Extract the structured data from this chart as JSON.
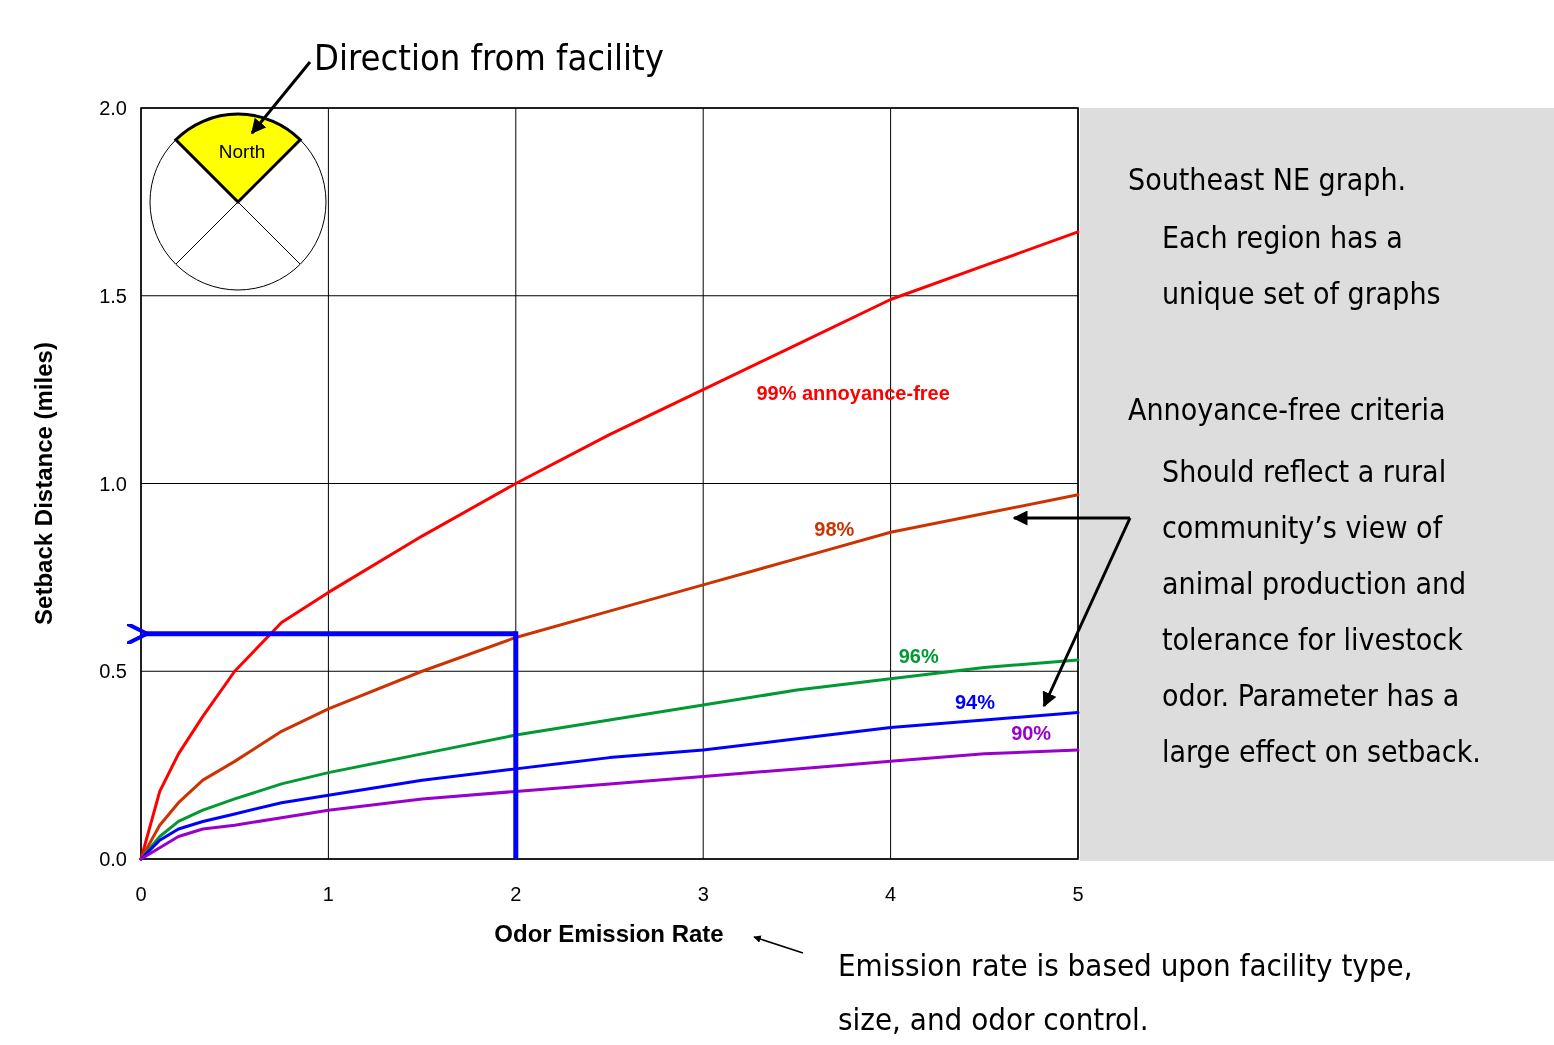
{
  "chart_data": {
    "type": "line",
    "xlabel": "Odor Emission Rate",
    "ylabel": "Setback Distance (miles)",
    "xlim": [
      0,
      5
    ],
    "xticks": [
      0,
      1,
      2,
      3,
      4,
      5
    ],
    "ylim": [
      0,
      2
    ],
    "yticks": [
      {
        "value": 0,
        "label": "0.0"
      },
      {
        "value": 0.5,
        "label": "0.5"
      },
      {
        "value": 1,
        "label": "1.0"
      },
      {
        "value": 1.5,
        "label": "1.5"
      },
      {
        "value": 2,
        "label": "2.0"
      }
    ],
    "grid": true,
    "marker": "none",
    "line_style": "solid",
    "x": [
      0,
      0.1,
      0.2,
      0.33,
      0.5,
      0.75,
      1,
      1.5,
      2,
      2.5,
      3,
      3.5,
      4,
      4.5,
      5
    ],
    "series": [
      {
        "name": "99% annoyance-free",
        "color": "#ff0000",
        "values": [
          0,
          0.18,
          0.28,
          0.38,
          0.5,
          0.63,
          0.71,
          0.86,
          1.0,
          1.13,
          1.25,
          1.37,
          1.49,
          1.58,
          1.67
        ]
      },
      {
        "name": "98%",
        "color": "#cc3300",
        "values": [
          0,
          0.09,
          0.15,
          0.21,
          0.26,
          0.34,
          0.4,
          0.5,
          0.59,
          0.66,
          0.73,
          0.8,
          0.87,
          0.92,
          0.97
        ]
      },
      {
        "name": "96%",
        "color": "#009933",
        "values": [
          0,
          0.06,
          0.1,
          0.13,
          0.16,
          0.2,
          0.23,
          0.28,
          0.33,
          0.37,
          0.41,
          0.45,
          0.48,
          0.51,
          0.53
        ]
      },
      {
        "name": "94%",
        "color": "#0000ff",
        "values": [
          0,
          0.05,
          0.08,
          0.1,
          0.12,
          0.15,
          0.17,
          0.21,
          0.24,
          0.27,
          0.29,
          0.32,
          0.35,
          0.37,
          0.39
        ]
      },
      {
        "name": "90%",
        "color": "#9900cc",
        "values": [
          0,
          0.03,
          0.06,
          0.08,
          0.09,
          0.11,
          0.13,
          0.16,
          0.18,
          0.2,
          0.22,
          0.24,
          0.26,
          0.28,
          0.29
        ]
      }
    ],
    "ref_lines": [
      {
        "axis": "x",
        "value": 2,
        "color": "#0000ff"
      },
      {
        "axis": "y",
        "value": 0.6,
        "color": "#0000ff"
      }
    ],
    "annotations": [
      "Direction from facility",
      "North",
      "Southeast NE graph.",
      "Each region has a unique set of graphs",
      "Annoyance-free criteria",
      "Should reflect a rural community’s view of animal production and tolerance for livestock odor.  Parameter has a large effect on setback.",
      "Emission rate is based upon facility type, size, and odor control."
    ]
  }
}
